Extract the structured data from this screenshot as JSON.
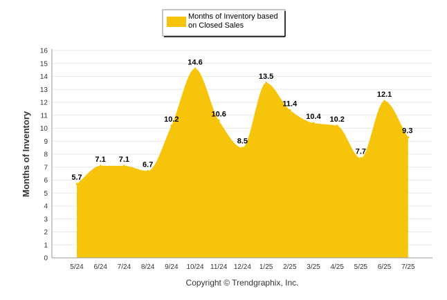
{
  "chart_data": {
    "type": "area",
    "categories": [
      "5/24",
      "6/24",
      "7/24",
      "8/24",
      "9/24",
      "10/24",
      "11/24",
      "12/24",
      "1/25",
      "2/25",
      "3/25",
      "4/25",
      "5/25",
      "6/25",
      "7/25"
    ],
    "series": [
      {
        "name": "Months of Inventory based on Closed Sales",
        "x": [
          "5/24",
          "6/24",
          "7/24",
          "8/24",
          "9/24",
          "10/24",
          "11/24",
          "12/24",
          "1/25",
          "2/25",
          "3/25",
          "4/25",
          "5/25",
          "6/25",
          "7/25"
        ],
        "values": [
          5.7,
          7.1,
          7.1,
          6.7,
          10.2,
          14.6,
          10.6,
          8.5,
          13.5,
          11.4,
          10.4,
          10.2,
          7.7,
          12.1,
          9.3
        ],
        "color": "#f7c40c"
      }
    ],
    "data_labels": [
      "5.7",
      "7.1",
      "7.1",
      "6.7",
      "10.2",
      "14.6",
      "10.6",
      "8.5",
      "13.5",
      "11.4",
      "10.4",
      "10.2",
      "7.7",
      "12.1",
      "9.3"
    ],
    "xlabel": "",
    "ylabel": "Months of Inventory",
    "ylim": [
      0,
      16
    ],
    "yticks": [
      "0",
      "1",
      "2",
      "3",
      "4",
      "5",
      "6",
      "7",
      "8",
      "9",
      "10",
      "11",
      "12",
      "13",
      "14",
      "15",
      "16"
    ],
    "grid": true,
    "legend_position": "top-center",
    "gridline_color": "#e8e8e8"
  },
  "legend": {
    "line1": "Months of Inventory based",
    "line2": "on Closed Sales"
  },
  "copyright": "Copyright © Trendgraphix, Inc."
}
